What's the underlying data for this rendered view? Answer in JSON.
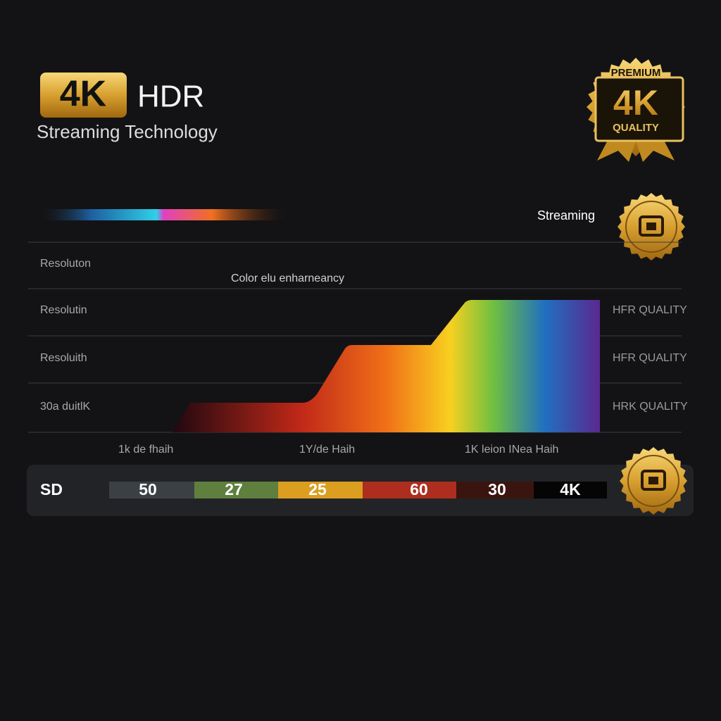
{
  "header": {
    "badge": "4K",
    "title": "HDR",
    "subtitle": "Streaming Technology"
  },
  "premium_badge": {
    "top": "PREMIUM",
    "main": "4K",
    "bottom": "QUALITY"
  },
  "streaming_label": "Streaming",
  "row_labels": [
    "Resoluton",
    "Resolutin",
    "Resoluith",
    "30a duitlK"
  ],
  "area_caption": "Color elu enharneancy",
  "right_labels": [
    "HFR QUALITY",
    "HFR QUALITY",
    "HRK QUALITY"
  ],
  "bottom_labels": [
    "1k de fhaih",
    "1Y/de Haih",
    "1K leion INea Haih"
  ],
  "scale_bar": {
    "label": "SD",
    "segments": [
      50,
      27,
      25,
      60,
      30,
      "4K"
    ]
  }
}
